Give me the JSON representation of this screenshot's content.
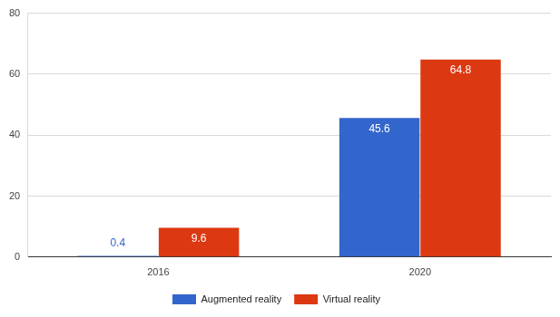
{
  "chart_data": {
    "type": "bar",
    "categories": [
      "2016",
      "2020"
    ],
    "series": [
      {
        "name": "Augmented reality",
        "color": "#3366cc",
        "values": [
          0.4,
          45.6
        ]
      },
      {
        "name": "Virtual reality",
        "color": "#dc3912",
        "values": [
          9.6,
          64.8
        ]
      }
    ],
    "ylim": [
      0,
      80
    ],
    "yticks": [
      0,
      20,
      40,
      60,
      80
    ],
    "grid": true,
    "legend": "bottom",
    "data_labels": true
  }
}
